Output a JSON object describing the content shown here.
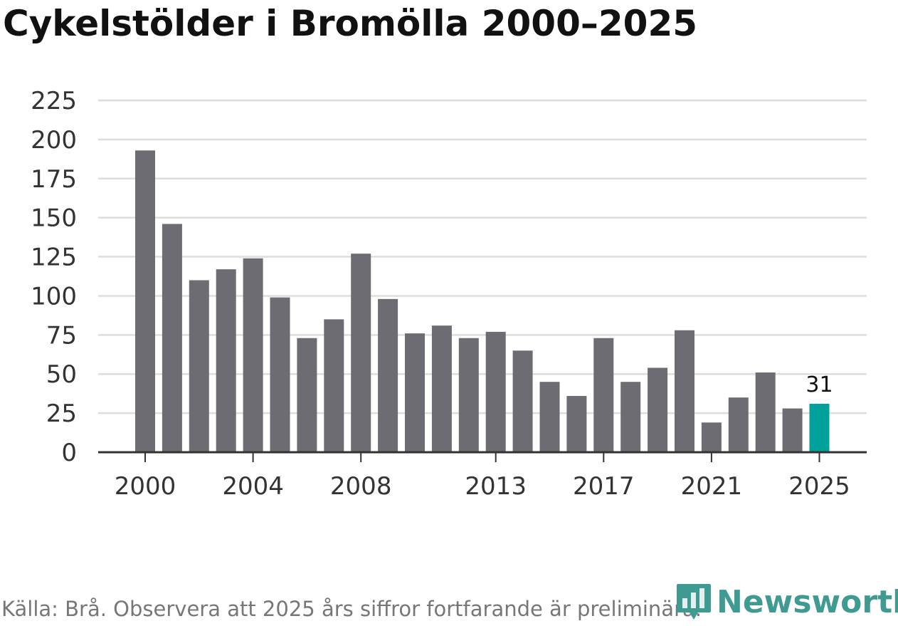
{
  "chart_data": {
    "type": "bar",
    "title": "Cykelstölder i Bromölla 2000–2025",
    "xlabel": "",
    "ylabel": "",
    "ylim": [
      0,
      225
    ],
    "yticks": [
      0,
      25,
      50,
      75,
      100,
      125,
      150,
      175,
      200,
      225
    ],
    "xtick_labels": [
      "2000",
      "2004",
      "2008",
      "2013",
      "2017",
      "2021",
      "2025"
    ],
    "categories": [
      "2000",
      "2001",
      "2002",
      "2003",
      "2004",
      "2005",
      "2006",
      "2007",
      "2008",
      "2009",
      "2010",
      "2011",
      "2012",
      "2013",
      "2014",
      "2015",
      "2016",
      "2017",
      "2018",
      "2019",
      "2020",
      "2021",
      "2022",
      "2023",
      "2024",
      "2025"
    ],
    "values": [
      193,
      146,
      110,
      117,
      124,
      99,
      73,
      85,
      127,
      98,
      76,
      81,
      73,
      77,
      65,
      45,
      36,
      73,
      45,
      54,
      78,
      19,
      35,
      51,
      28,
      31
    ],
    "highlight_index": 25,
    "highlight_label": "31",
    "grid": true
  },
  "colors": {
    "bar": "#6d6c72",
    "highlight": "#00a19a",
    "grid": "#dddddd",
    "axis": "#333333",
    "brand": "#3f9b92"
  },
  "footer": {
    "source": "Källa: Brå. Observera att 2025 års siffror fortfarande är preliminära."
  },
  "logo": {
    "text": "Newsworthy",
    "icon": "newsworthy-chart-icon"
  }
}
